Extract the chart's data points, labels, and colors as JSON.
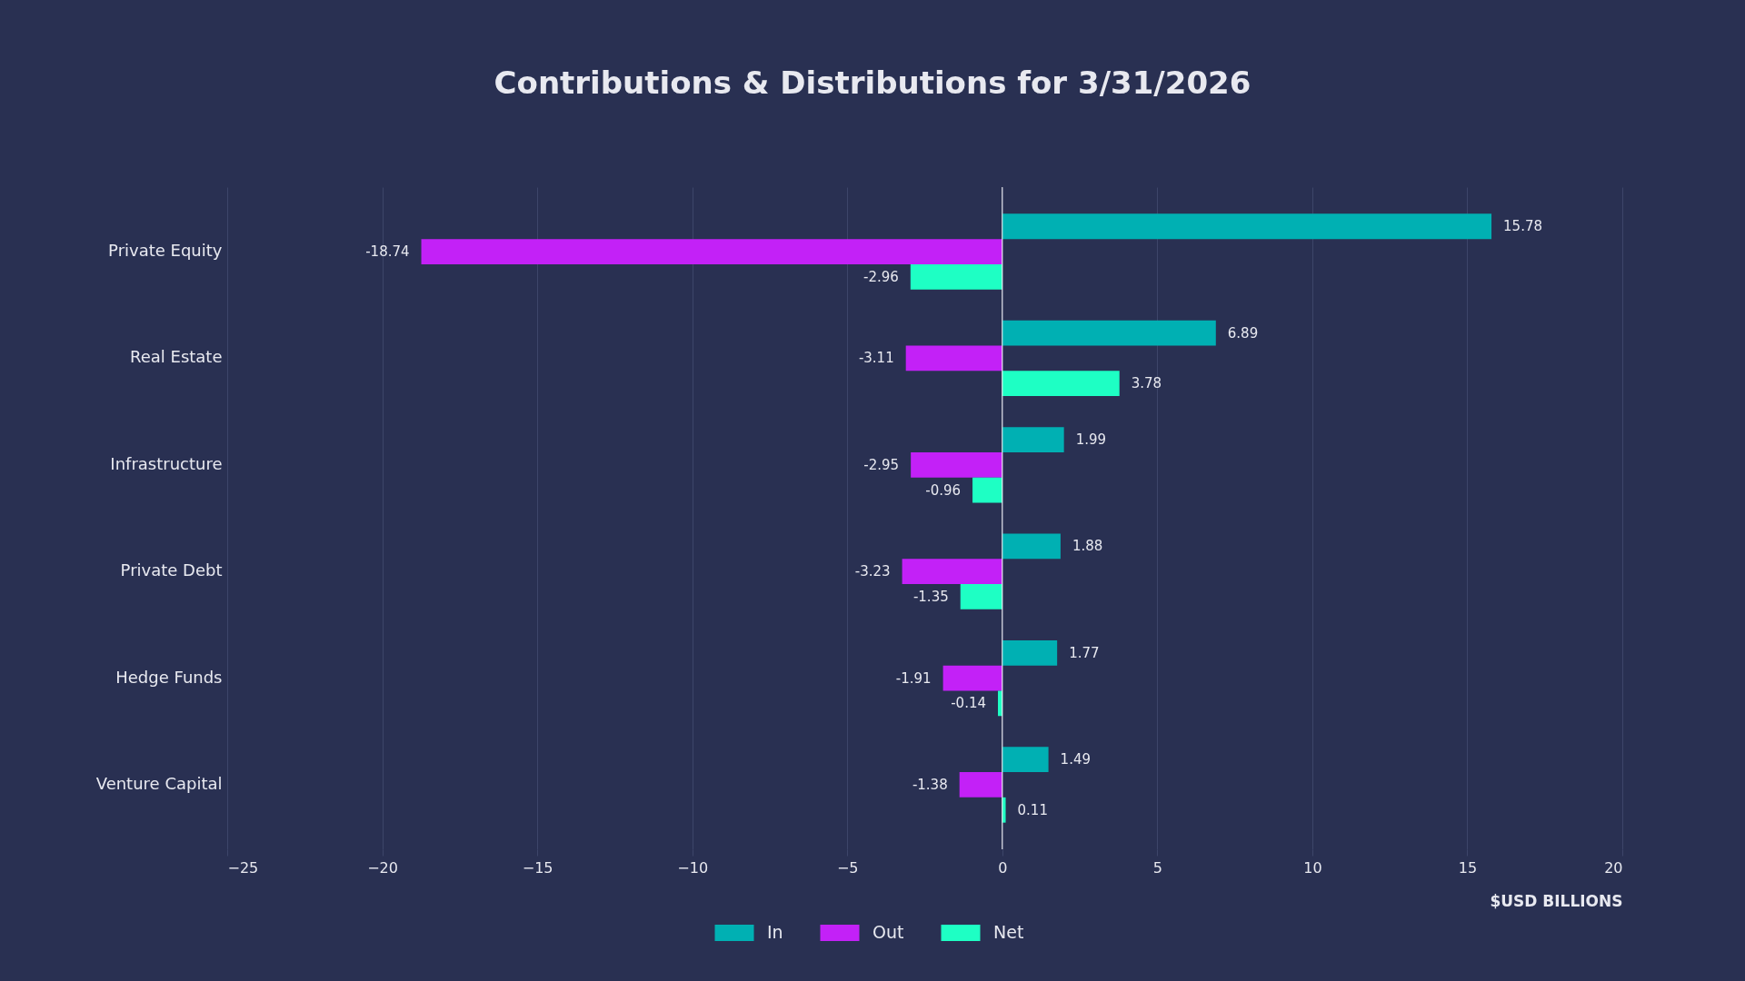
{
  "chart_data": {
    "type": "bar",
    "orientation": "horizontal",
    "title": "Contributions & Distributions for 3/31/2026",
    "xlabel": "$USD BILLIONS",
    "categories": [
      "Private Equity",
      "Real Estate",
      "Infrastructure",
      "Private Debt",
      "Hedge Funds",
      "Venture Capital"
    ],
    "series": [
      {
        "name": "In",
        "color": "#00b0b3",
        "values": [
          15.78,
          6.89,
          1.99,
          1.88,
          1.77,
          1.49
        ]
      },
      {
        "name": "Out",
        "color": "#c321f7",
        "values": [
          -18.74,
          -3.11,
          -2.95,
          -3.23,
          -1.91,
          -1.38
        ]
      },
      {
        "name": "Net",
        "color": "#1effc4",
        "values": [
          -2.96,
          3.78,
          -0.96,
          -1.35,
          -0.14,
          0.11
        ]
      }
    ],
    "xlim": [
      -25,
      20
    ],
    "xticks": [
      {
        "value": -25,
        "label": "−25"
      },
      {
        "value": -20,
        "label": "−20"
      },
      {
        "value": -15,
        "label": "−15"
      },
      {
        "value": -10,
        "label": "−10"
      },
      {
        "value": -5,
        "label": "−5"
      },
      0,
      5,
      10,
      15,
      20
    ],
    "grid": "x",
    "legend": "bottom",
    "data_labels": true,
    "ref_lines": [
      {
        "axis": "x",
        "value": 0,
        "color": "#ffffff"
      }
    ]
  }
}
